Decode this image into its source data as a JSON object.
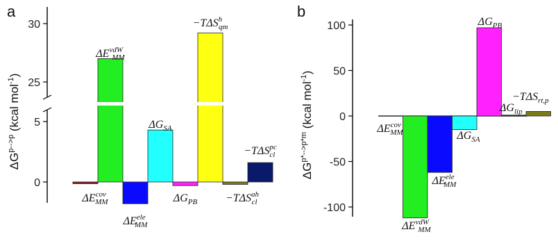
{
  "panels": [
    {
      "label": "a",
      "ylabel_main": "ΔG",
      "ylabel_sup": "p-->p",
      "ylabel_unit": " (kcal mol",
      "ylabel_unit_sup": "-1",
      "ylabel_close": ")"
    },
    {
      "label": "b",
      "ylabel_main": "ΔG",
      "ylabel_sup": "p*-->p*m",
      "ylabel_unit": " (kcal mol",
      "ylabel_unit_sup": "-1",
      "ylabel_close": ")"
    }
  ],
  "chart_data": [
    {
      "type": "bar",
      "title": "",
      "axis_break": {
        "lower_range": [
          -2,
          7
        ],
        "upper_range": [
          23.5,
          31
        ],
        "break_marker": "//"
      },
      "yticks_lower": [
        0,
        5
      ],
      "yticks_upper": [
        25,
        30
      ],
      "grid": false,
      "categories": [
        {
          "main": "ΔE",
          "sub": "MM",
          "sup": "cov"
        },
        {
          "main": "ΔE",
          "sub": "MM",
          "sup": "vdW"
        },
        {
          "main": "ΔE",
          "sub": "MM",
          "sup": "ele"
        },
        {
          "main": "ΔG",
          "sub": "SA",
          "sup": ""
        },
        {
          "main": "ΔG",
          "sub": "PB",
          "sup": ""
        },
        {
          "main": "−TΔS",
          "sub": "qm",
          "sup": "h"
        },
        {
          "main": "−TΔS",
          "sub": "cl",
          "sup": "ah"
        },
        {
          "main": "−TΔS",
          "sub": "cl",
          "sup": "pc"
        }
      ],
      "values": [
        -0.1,
        27.0,
        -1.8,
        4.3,
        -0.3,
        29.2,
        -0.2,
        1.6
      ],
      "colors": [
        "#8B1A1A",
        "#22EE22",
        "#0A0AFF",
        "#22FFFF",
        "#FF22FF",
        "#FFFF11",
        "#7A7A1A",
        "#0A1A6A"
      ]
    },
    {
      "type": "bar",
      "title": "",
      "ylim": [
        -115,
        105
      ],
      "yticks": [
        -100,
        -50,
        0,
        50,
        100
      ],
      "grid": false,
      "categories": [
        {
          "main": "ΔE",
          "sub": "MM",
          "sup": "cov"
        },
        {
          "main": "ΔE",
          "sub": "MM",
          "sup": "vdW"
        },
        {
          "main": "ΔE",
          "sub": "MM",
          "sup": "ele"
        },
        {
          "main": "ΔG",
          "sub": "SA",
          "sup": ""
        },
        {
          "main": "ΔG",
          "sub": "PB",
          "sup": ""
        },
        {
          "main": "ΔG",
          "sub": "lip",
          "sup": ""
        },
        {
          "main": "−TΔS",
          "sub": "rt,p",
          "sup": ""
        }
      ],
      "values": [
        0,
        -112,
        -62,
        -15,
        97,
        1,
        5
      ],
      "colors": [
        "#8B1A1A",
        "#22EE22",
        "#0A0AFF",
        "#22FFFF",
        "#FF22FF",
        "#333333",
        "#7A7A1A"
      ]
    }
  ]
}
